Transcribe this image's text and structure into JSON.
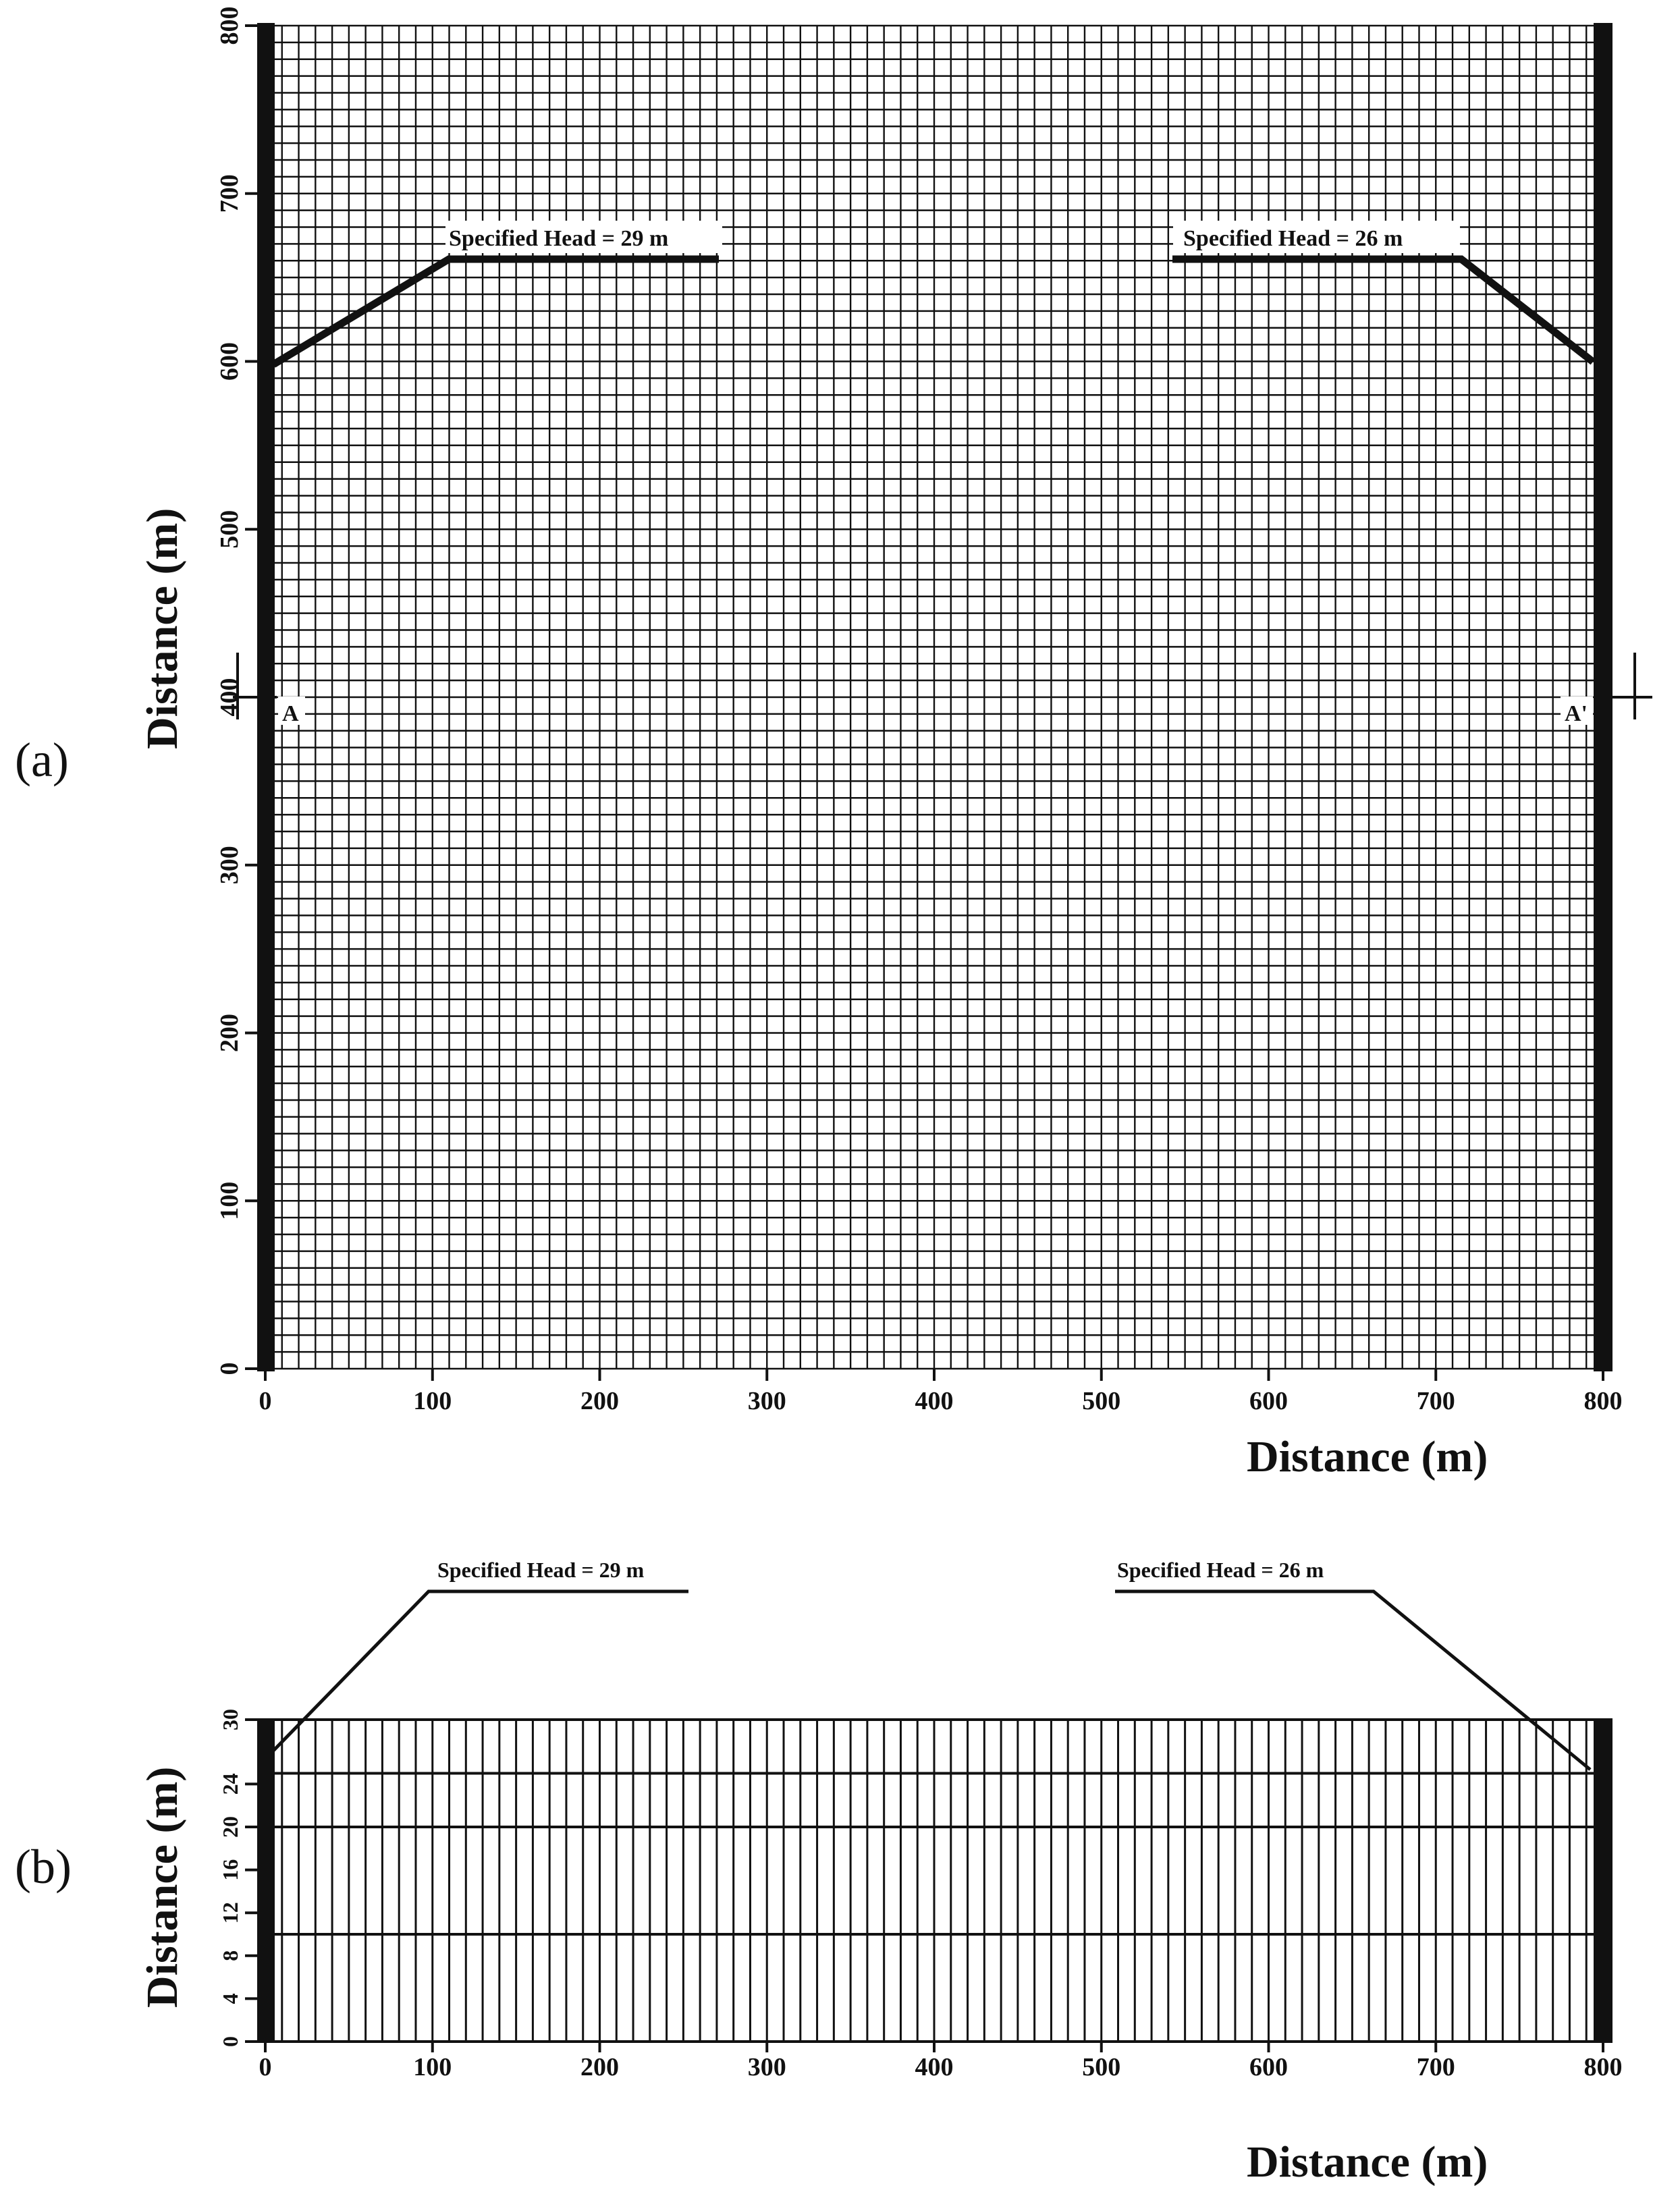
{
  "panel_a": {
    "label": "(a)",
    "x_axis_label": "Distance (m)",
    "y_axis_label": "Distance (m)",
    "x_ticks": [
      0,
      100,
      200,
      300,
      400,
      500,
      600,
      700,
      800
    ],
    "y_ticks": [
      0,
      100,
      200,
      300,
      400,
      500,
      600,
      700,
      800
    ],
    "xlim": [
      0,
      800
    ],
    "ylim": [
      0,
      800
    ],
    "grid_columns": 80,
    "grid_rows": 80,
    "left_head_label": "Specified Head = 29 m",
    "right_head_label": "Specified Head = 26 m",
    "section_marker_left": "A",
    "section_marker_right": "A'",
    "section_line_y": 400
  },
  "panel_b": {
    "label": "(b)",
    "x_axis_label": "Distance (m)",
    "y_axis_label": "Distance (m)",
    "x_ticks": [
      0,
      100,
      200,
      300,
      400,
      500,
      600,
      700,
      800
    ],
    "y_ticks": [
      0,
      4,
      8,
      12,
      16,
      20,
      24,
      30
    ],
    "xlim": [
      0,
      800
    ],
    "ylim": [
      0,
      30
    ],
    "grid_columns": 80,
    "layer_boundaries": [
      10,
      20,
      25
    ],
    "left_head_label": "Specified Head = 29 m",
    "right_head_label": "Specified Head = 26 m"
  },
  "colors": {
    "ink": "#111111",
    "background": "#ffffff"
  }
}
